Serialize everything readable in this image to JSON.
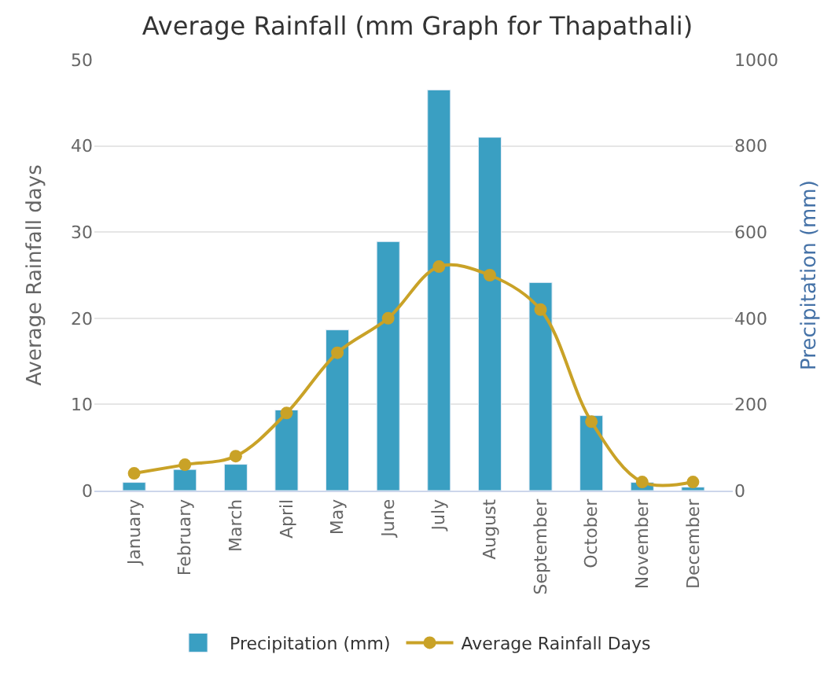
{
  "chart_data": {
    "type": "bar",
    "title": "Average Rainfall (mm Graph for Thapathali)",
    "ylabel": "Average Rainfall days",
    "y2label": "Precipitation (mm)",
    "categories": [
      "January",
      "February",
      "March",
      "April",
      "May",
      "June",
      "July",
      "August",
      "September",
      "October",
      "November",
      "December"
    ],
    "series": [
      {
        "name": "Precipitation (mm)",
        "axis": "y2",
        "color": "#3a9fc2",
        "values": [
          19,
          49,
          61,
          187,
          373,
          578,
          930,
          820,
          483,
          174,
          19,
          8
        ]
      },
      {
        "name": "Average Rainfall Days",
        "type": "line",
        "axis": "y",
        "color": "#c9a227",
        "marker": "circle",
        "values": [
          2,
          3,
          4,
          9,
          16,
          20,
          26,
          25,
          21,
          8,
          1,
          1
        ]
      }
    ],
    "ylim": [
      0,
      50
    ],
    "yticks": [
      0,
      10,
      20,
      30,
      40,
      50
    ],
    "y2lim": [
      0,
      1000
    ],
    "y2ticks": [
      0,
      200,
      400,
      600,
      800,
      1000
    ],
    "grid": "y",
    "legend": "bottom"
  }
}
